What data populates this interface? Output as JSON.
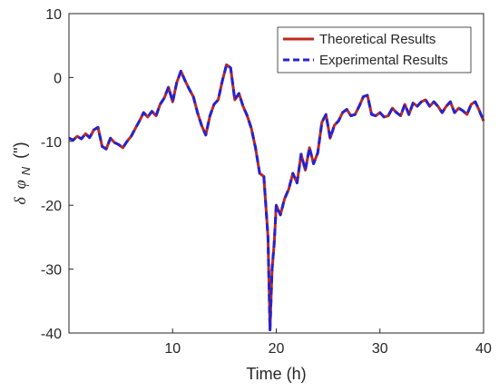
{
  "colors": {
    "theoretical": "#c0281e",
    "experimental": "#2323d2",
    "axis": "#262626"
  },
  "chart_data": {
    "type": "line",
    "xlabel": "Time (h)",
    "ylabel": "δ φ_N (\")",
    "ylabel_parts": {
      "delta": "δ",
      "phi": "φ",
      "sub": "N",
      "unit": "(\")"
    },
    "xlim": [
      0,
      40
    ],
    "ylim": [
      -40,
      10
    ],
    "xticks": [
      10,
      20,
      30,
      40
    ],
    "yticks": [
      10,
      0,
      -10,
      -20,
      -30,
      -40
    ],
    "grid": false,
    "legend_position": "top-right",
    "series": [
      {
        "name": "Theoretical Results",
        "style": "solid"
      },
      {
        "name": "Experimental Results",
        "style": "dashed"
      }
    ],
    "x": [
      0,
      0.4,
      0.8,
      1.2,
      1.6,
      2.0,
      2.4,
      2.8,
      3.2,
      3.6,
      4.0,
      4.4,
      4.8,
      5.2,
      5.6,
      6.0,
      6.4,
      6.8,
      7.2,
      7.6,
      8.0,
      8.4,
      8.8,
      9.2,
      9.6,
      10.0,
      10.4,
      10.8,
      11.2,
      11.6,
      12.0,
      12.4,
      12.8,
      13.2,
      13.6,
      14.0,
      14.4,
      14.8,
      15.2,
      15.6,
      16.0,
      16.4,
      16.8,
      17.2,
      17.6,
      18.0,
      18.4,
      18.8,
      19.2,
      19.4,
      19.6,
      19.8,
      20.0,
      20.4,
      20.8,
      21.2,
      21.6,
      22.0,
      22.4,
      22.8,
      23.2,
      23.6,
      24.0,
      24.4,
      24.8,
      25.2,
      25.6,
      26.0,
      26.4,
      26.8,
      27.2,
      27.6,
      28.0,
      28.4,
      28.8,
      29.2,
      29.6,
      30.0,
      30.4,
      30.8,
      31.2,
      31.6,
      32.0,
      32.4,
      32.8,
      33.2,
      33.6,
      34.0,
      34.4,
      34.8,
      35.2,
      35.6,
      36.0,
      36.4,
      36.8,
      37.2,
      37.6,
      38.0,
      38.4,
      38.8,
      39.2,
      39.6,
      40.0
    ],
    "y": [
      -9.5,
      -9.8,
      -9.2,
      -9.6,
      -8.8,
      -9.4,
      -8.2,
      -7.8,
      -10.8,
      -11.2,
      -9.5,
      -10.2,
      -10.5,
      -11.0,
      -10.0,
      -9.2,
      -8.0,
      -6.8,
      -5.5,
      -6.2,
      -5.3,
      -6.0,
      -4.2,
      -3.2,
      -1.5,
      -3.8,
      -0.8,
      1.0,
      -0.5,
      -1.8,
      -3.0,
      -5.5,
      -7.5,
      -9.0,
      -6.0,
      -4.2,
      -3.5,
      -0.5,
      2.0,
      1.5,
      -3.5,
      -2.5,
      -4.5,
      -6.0,
      -8.0,
      -11.0,
      -15.0,
      -15.5,
      -25.0,
      -39.5,
      -30.0,
      -26.0,
      -20.0,
      -21.5,
      -19.0,
      -17.5,
      -15.0,
      -16.5,
      -12.0,
      -14.5,
      -11.0,
      -13.5,
      -11.8,
      -7.0,
      -5.8,
      -9.5,
      -7.5,
      -6.8,
      -5.5,
      -5.0,
      -6.0,
      -5.8,
      -4.5,
      -3.0,
      -2.8,
      -5.8,
      -6.0,
      -5.5,
      -6.2,
      -6.0,
      -4.8,
      -5.5,
      -6.0,
      -4.2,
      -5.8,
      -4.0,
      -4.5,
      -3.8,
      -3.5,
      -4.5,
      -3.8,
      -4.5,
      -5.5,
      -4.5,
      -3.8,
      -5.5,
      -4.8,
      -5.2,
      -5.8,
      -4.2,
      -3.8,
      -5.2,
      -6.8
    ]
  }
}
